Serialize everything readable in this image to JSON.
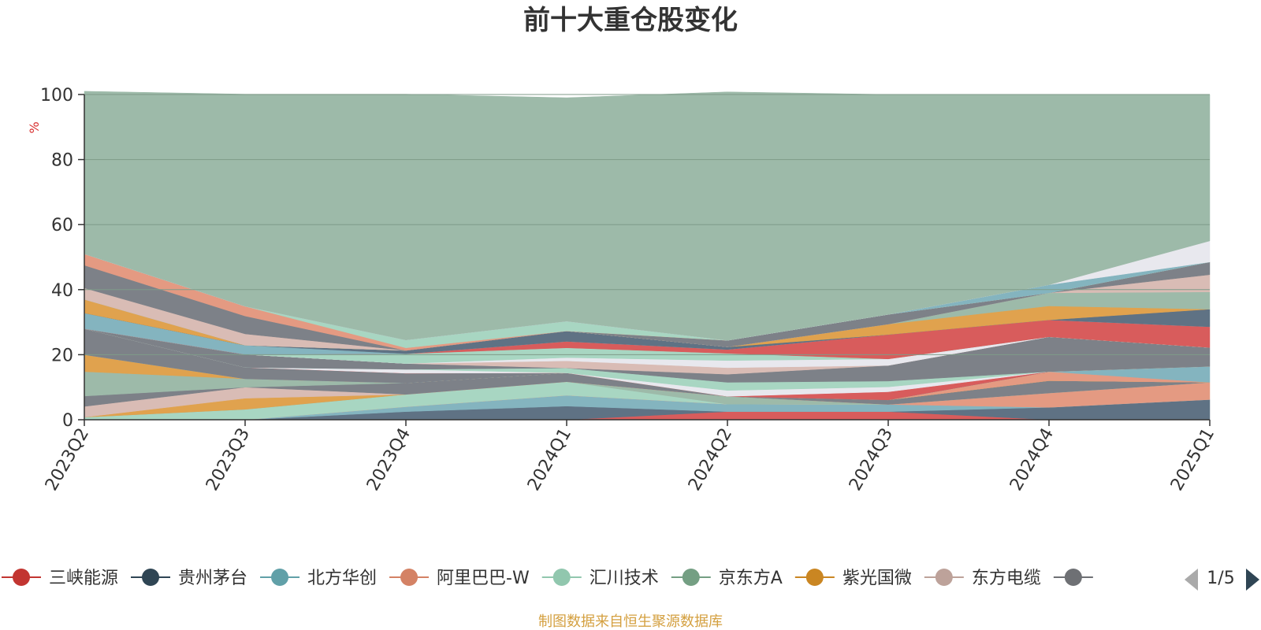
{
  "chart_data": {
    "type": "area",
    "stacked": true,
    "title": "前十大重仓股变化",
    "y_unit_label": "%",
    "categories": [
      "2023Q2",
      "2023Q3",
      "2023Q4",
      "2024Q1",
      "2024Q2",
      "2024Q3",
      "2024Q4",
      "2025Q1"
    ],
    "ylim": [
      0,
      100
    ],
    "y_ticks": [
      0,
      20,
      40,
      60,
      80,
      100
    ],
    "grid": true,
    "legend_position": "bottom",
    "series": [
      {
        "name": "三峡能源",
        "color": "#d85c5c",
        "values": [
          0,
          0,
          0,
          0,
          2.5,
          2.5,
          0,
          0
        ]
      },
      {
        "name": "贵州茅台",
        "color": "#5f7284",
        "values": [
          0,
          0,
          2.5,
          4.2,
          0,
          0,
          3.8,
          6.2
        ]
      },
      {
        "name": "北方华创",
        "color": "#84b4bf",
        "values": [
          0,
          0,
          1.5,
          3.3,
          2.3,
          2.2,
          0,
          0
        ]
      },
      {
        "name": "阿里巴巴-W",
        "color": "#e49a82",
        "values": [
          0,
          0,
          0,
          0,
          0,
          0,
          4.4,
          5.3
        ]
      },
      {
        "name": "汇川技术",
        "color": "#a8d6c2",
        "values": [
          0.8,
          3.2,
          3.8,
          4.2,
          0,
          0,
          0,
          0
        ]
      },
      {
        "name": "京东方A",
        "color": "#9dbaa9",
        "values": [
          0,
          0,
          0,
          0,
          2.4,
          0,
          0,
          0
        ]
      },
      {
        "name": "紫光国微",
        "color": "#e0a24e",
        "values": [
          0,
          3.4,
          0,
          0,
          0,
          0,
          0,
          0
        ]
      },
      {
        "name": "东方电缆",
        "color": "#d9bcb5",
        "values": [
          3.3,
          3.4,
          0,
          0,
          0,
          0,
          0,
          0
        ]
      },
      {
        "name": "",
        "color": "#7d8188",
        "values": [
          3.2,
          0,
          3.5,
          2.7,
          0,
          1.4,
          3.8,
          0
        ]
      },
      {
        "name": "",
        "color": "#9dbaa9",
        "values": [
          7.5,
          2.6,
          0,
          0,
          0,
          0,
          0,
          0
        ]
      },
      {
        "name": "",
        "color": "#e0a24e",
        "values": [
          5.2,
          0,
          0,
          0,
          0,
          0,
          0,
          0
        ]
      },
      {
        "name": "",
        "color": "#e49a82",
        "values": [
          0,
          0,
          0,
          0,
          0,
          0,
          2.8,
          0
        ]
      },
      {
        "name": "",
        "color": "#84b4bf",
        "values": [
          0,
          0,
          0,
          0,
          0,
          0,
          0,
          4.9
        ]
      },
      {
        "name": "",
        "color": "#7d8188",
        "values": [
          8.0,
          3.5,
          3.0,
          0,
          0,
          0,
          0,
          0
        ]
      },
      {
        "name": "",
        "color": "#d85c5c",
        "values": [
          0,
          0,
          0,
          0,
          0,
          2.5,
          0,
          0
        ]
      },
      {
        "name": "",
        "color": "#e8e8ee",
        "values": [
          0,
          0,
          1.2,
          0,
          1.8,
          1.5,
          0,
          0
        ]
      },
      {
        "name": "",
        "color": "#a8d6c2",
        "values": [
          0,
          0,
          0,
          1.5,
          2.5,
          1.8,
          0,
          0
        ]
      },
      {
        "name": "",
        "color": "#7d8188",
        "values": [
          0,
          4.0,
          1.8,
          0,
          2.5,
          4.8,
          10.7,
          5.8
        ]
      },
      {
        "name": "",
        "color": "#d9bcb5",
        "values": [
          0,
          0,
          0,
          2.2,
          2.0,
          0,
          0,
          0
        ]
      },
      {
        "name": "",
        "color": "#e8e8ee",
        "values": [
          0,
          0,
          0,
          1.0,
          2.2,
          2.0,
          0,
          0
        ]
      },
      {
        "name": "",
        "color": "#a8d6c2",
        "values": [
          0,
          0,
          3.0,
          3.0,
          2.2,
          0,
          0,
          0
        ]
      },
      {
        "name": "",
        "color": "#d85c5c",
        "values": [
          0,
          0,
          0,
          2.0,
          1.2,
          7.5,
          5.2,
          6.4
        ]
      },
      {
        "name": "",
        "color": "#84b4bf",
        "values": [
          4.8,
          2.8,
          0,
          0,
          0,
          0,
          0,
          0
        ]
      },
      {
        "name": "",
        "color": "#5f7284",
        "values": [
          0,
          0,
          1.0,
          3.2,
          0.8,
          0,
          0,
          5.4
        ]
      },
      {
        "name": "",
        "color": "#e0a24e",
        "values": [
          4.2,
          0,
          0,
          0,
          0,
          3.2,
          4.3,
          0
        ]
      },
      {
        "name": "",
        "color": "#9dbaa9",
        "values": [
          0,
          0,
          0,
          0,
          0,
          0,
          4.0,
          5.3
        ]
      },
      {
        "name": "",
        "color": "#d9bcb5",
        "values": [
          3.5,
          3.5,
          0,
          0,
          0,
          0,
          0,
          5.3
        ]
      },
      {
        "name": "",
        "color": "#7d8188",
        "values": [
          7.0,
          5.5,
          0,
          0,
          2.0,
          3.0,
          0,
          3.9
        ]
      },
      {
        "name": "",
        "color": "#e49a82",
        "values": [
          3.5,
          3.0,
          0.8,
          0,
          0,
          0,
          0,
          0
        ]
      },
      {
        "name": "",
        "color": "#a8d6c2",
        "values": [
          0,
          0,
          2.4,
          3.0,
          0,
          0,
          0,
          0
        ]
      },
      {
        "name": "",
        "color": "#84b4bf",
        "values": [
          0,
          0,
          0,
          0,
          0,
          0,
          2.5,
          0
        ]
      },
      {
        "name": "",
        "color": "#e8e8ee",
        "values": [
          0,
          0,
          0,
          0,
          0,
          0,
          0,
          6.5
        ]
      },
      {
        "name": "",
        "color": "#9dbaa9",
        "values": [
          50.0,
          65.2,
          75.6,
          68.7,
          76.4,
          67.6,
          58.5,
          45.0
        ]
      }
    ]
  },
  "legend": {
    "items": [
      {
        "name": "三峡能源",
        "color": "#c23531"
      },
      {
        "name": "贵州茅台",
        "color": "#2f4554"
      },
      {
        "name": "北方华创",
        "color": "#61a0a8"
      },
      {
        "name": "阿里巴巴-W",
        "color": "#d48265"
      },
      {
        "name": "汇川技术",
        "color": "#91c7ae"
      },
      {
        "name": "京东方A",
        "color": "#749f83"
      },
      {
        "name": "紫光国微",
        "color": "#ca8622"
      },
      {
        "name": "东方电缆",
        "color": "#bda29a"
      },
      {
        "name": "",
        "color": "#6e7074"
      }
    ],
    "page_indicator": "1/5"
  },
  "footer": {
    "source_note": "制图数据来自恒生聚源数据库"
  }
}
